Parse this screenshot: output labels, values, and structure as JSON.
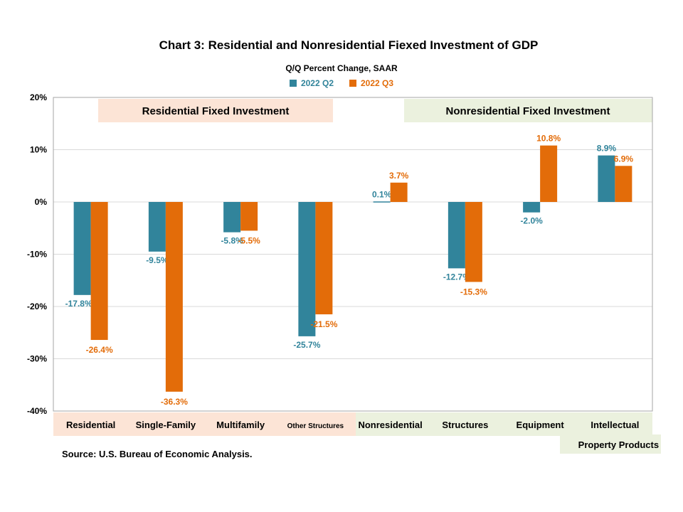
{
  "colors": {
    "q2": "#31849B",
    "q3": "#E36C09",
    "resBand": "#FCE4D6",
    "nonresBand": "#EBF1DE",
    "grid": "#D9D9D9"
  },
  "header": {
    "title": "Chart 3: Residential and Nonresidential  Fiexed Investment of GDP",
    "subtitle": "Q/Q Percent Change, SAAR"
  },
  "groups": {
    "residential_label": "Residential  Fixed Investment",
    "nonresidential_label": "Nonresidential Fixed Investment"
  },
  "footer": {
    "source": "Source: U.S. Bureau of Economic Analysis."
  },
  "chart_data": {
    "type": "bar",
    "categories": [
      "Residential",
      "Single-Family",
      "Multifamily",
      "Other Structures",
      "Nonresidential",
      "Structures",
      "Equipment",
      "Intellectual Property Products"
    ],
    "category_lines": [
      [
        "Residential"
      ],
      [
        "Single-Family"
      ],
      [
        "Multifamily"
      ],
      [
        "Other Structures"
      ],
      [
        "Nonresidential"
      ],
      [
        "Structures"
      ],
      [
        "Equipment"
      ],
      [
        "Intellectual",
        "Property Products"
      ]
    ],
    "series": [
      {
        "name": "2022 Q2",
        "values": [
          -17.8,
          -9.5,
          -5.8,
          -25.7,
          0.1,
          -12.7,
          -2.0,
          8.9
        ],
        "labels": [
          "-17.8%",
          "-9.5%",
          "-5.8%",
          "-25.7%",
          "0.1%",
          "-12.7%",
          "-2.0%",
          "8.9%"
        ]
      },
      {
        "name": "2022 Q3",
        "values": [
          -26.4,
          -36.3,
          -5.5,
          -21.5,
          3.7,
          -15.3,
          10.8,
          6.9
        ],
        "labels": [
          "-26.4%",
          "-36.3%",
          "-5.5%",
          "-21.5%",
          "3.7%",
          "-15.3%",
          "10.8%",
          "6.9%"
        ]
      }
    ],
    "yticks": [
      20,
      10,
      0,
      -10,
      -20,
      -30,
      -40
    ],
    "ytick_labels": [
      "20%",
      "10%",
      "0%",
      "-10%",
      "-20%",
      "-30%",
      "-40%"
    ],
    "ylim": [
      -40,
      20
    ],
    "grid": true,
    "legend": "top-center"
  }
}
